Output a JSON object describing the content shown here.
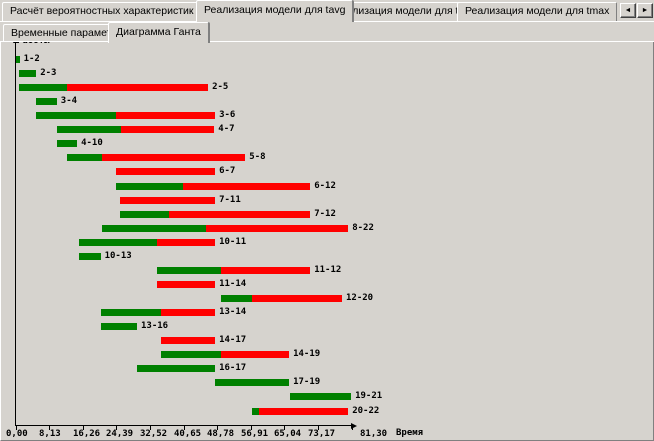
{
  "window": {
    "background": "#d6d3ce"
  },
  "main_tabs": {
    "items": [
      {
        "label": "Расчёт вероятностных характеристик L_kp",
        "active": false
      },
      {
        "label": "Реализация модели для tavg",
        "active": true
      },
      {
        "label": "Реализация модели для tmin",
        "active": false
      },
      {
        "label": "Реализация модели для tmax",
        "active": false
      }
    ],
    "scroll_left_icon": "◄",
    "scroll_right_icon": "►"
  },
  "sub_tabs": {
    "items": [
      {
        "label": "Временные параметры",
        "active": false
      },
      {
        "label": "Диаграмма Ганта",
        "active": true
      }
    ]
  },
  "chart_data": {
    "type": "gantt-bar",
    "title": "",
    "ylabel": "Работы",
    "xlabel": "Время",
    "x_min": 0,
    "x_max": 81.3,
    "x_tick_values": [
      0,
      8.13,
      16.26,
      24.39,
      32.52,
      40.65,
      48.78,
      56.91,
      65.04,
      73.17,
      81.3
    ],
    "x_tick_labels": [
      "0,00",
      "8,13",
      "16,26",
      "24,39",
      "32,52",
      "40,65",
      "48,78",
      "56,91",
      "65,04",
      "73,17",
      "81,30"
    ],
    "grid": false,
    "legend": [],
    "colors": {
      "early_segment": "#008000",
      "late_segment": "#ff0000"
    },
    "segment_meaning": {
      "green": "early part of activity",
      "red": "late/slack part of activity"
    },
    "tasks": [
      {
        "label": "1-2",
        "start": 0,
        "split": 1.0,
        "end": 1.0
      },
      {
        "label": "2-3",
        "start": 0.9,
        "split": 5.0,
        "end": 5.0
      },
      {
        "label": "2-5",
        "start": 0.9,
        "split": 12.5,
        "end": 46.6
      },
      {
        "label": "3-4",
        "start": 5.0,
        "split": 10.0,
        "end": 10.0
      },
      {
        "label": "3-6",
        "start": 5.0,
        "split": 24.3,
        "end": 48.3
      },
      {
        "label": "4-7",
        "start": 10.0,
        "split": 25.5,
        "end": 48.1
      },
      {
        "label": "4-10",
        "start": 10.0,
        "split": 14.9,
        "end": 14.9
      },
      {
        "label": "5-8",
        "start": 12.5,
        "split": 20.9,
        "end": 55.6
      },
      {
        "label": "6-7",
        "start": 24.3,
        "split": 24.3,
        "end": 48.3
      },
      {
        "label": "6-12",
        "start": 24.3,
        "split": 40.5,
        "end": 71.3
      },
      {
        "label": "7-11",
        "start": 25.3,
        "split": 25.3,
        "end": 48.3
      },
      {
        "label": "7-12",
        "start": 25.3,
        "split": 37.1,
        "end": 71.3
      },
      {
        "label": "8-22",
        "start": 20.9,
        "split": 46.1,
        "end": 80.5
      },
      {
        "label": "10-11",
        "start": 15.4,
        "split": 34.2,
        "end": 48.3
      },
      {
        "label": "10-13",
        "start": 15.4,
        "split": 20.6,
        "end": 20.6
      },
      {
        "label": "11-12",
        "start": 34.2,
        "split": 49.7,
        "end": 71.3
      },
      {
        "label": "11-14",
        "start": 34.2,
        "split": 34.2,
        "end": 48.3
      },
      {
        "label": "12-20",
        "start": 49.7,
        "split": 57.2,
        "end": 79.0
      },
      {
        "label": "13-14",
        "start": 20.7,
        "split": 35.2,
        "end": 48.3
      },
      {
        "label": "13-16",
        "start": 20.7,
        "split": 29.4,
        "end": 29.4
      },
      {
        "label": "14-17",
        "start": 35.2,
        "split": 35.2,
        "end": 48.3
      },
      {
        "label": "14-19",
        "start": 35.2,
        "split": 49.7,
        "end": 66.2
      },
      {
        "label": "16-17",
        "start": 29.4,
        "split": 48.3,
        "end": 48.3
      },
      {
        "label": "17-19",
        "start": 48.3,
        "split": 66.2,
        "end": 66.2
      },
      {
        "label": "19-21",
        "start": 66.4,
        "split": 81.2,
        "end": 81.2
      },
      {
        "label": "20-22",
        "start": 57.2,
        "split": 58.9,
        "end": 80.5
      }
    ]
  }
}
